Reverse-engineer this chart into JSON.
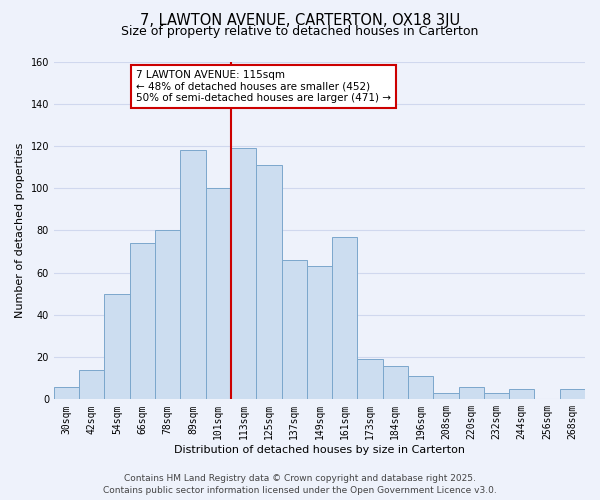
{
  "title": "7, LAWTON AVENUE, CARTERTON, OX18 3JU",
  "subtitle": "Size of property relative to detached houses in Carterton",
  "xlabel": "Distribution of detached houses by size in Carterton",
  "ylabel": "Number of detached properties",
  "bar_labels": [
    "30sqm",
    "42sqm",
    "54sqm",
    "66sqm",
    "78sqm",
    "89sqm",
    "101sqm",
    "113sqm",
    "125sqm",
    "137sqm",
    "149sqm",
    "161sqm",
    "173sqm",
    "184sqm",
    "196sqm",
    "208sqm",
    "220sqm",
    "232sqm",
    "244sqm",
    "256sqm",
    "268sqm"
  ],
  "bar_values": [
    6,
    14,
    50,
    74,
    80,
    118,
    100,
    119,
    111,
    66,
    63,
    77,
    19,
    16,
    11,
    3,
    6,
    3,
    5,
    0,
    5
  ],
  "bar_color": "#ccddf0",
  "bar_edge_color": "#7ba7cc",
  "vline_color": "#cc0000",
  "annotation_title": "7 LAWTON AVENUE: 115sqm",
  "annotation_line1": "← 48% of detached houses are smaller (452)",
  "annotation_line2": "50% of semi-detached houses are larger (471) →",
  "annotation_box_color": "#ffffff",
  "annotation_box_edge": "#cc0000",
  "ylim": [
    0,
    160
  ],
  "yticks": [
    0,
    20,
    40,
    60,
    80,
    100,
    120,
    140,
    160
  ],
  "footer_line1": "Contains HM Land Registry data © Crown copyright and database right 2025.",
  "footer_line2": "Contains public sector information licensed under the Open Government Licence v3.0.",
  "bg_color": "#eef2fb",
  "plot_bg_color": "#eef2fb",
  "grid_color": "#d0d8ee",
  "title_fontsize": 10.5,
  "subtitle_fontsize": 9,
  "axis_label_fontsize": 8,
  "tick_fontsize": 7,
  "footer_fontsize": 6.5,
  "annotation_fontsize": 7.5
}
